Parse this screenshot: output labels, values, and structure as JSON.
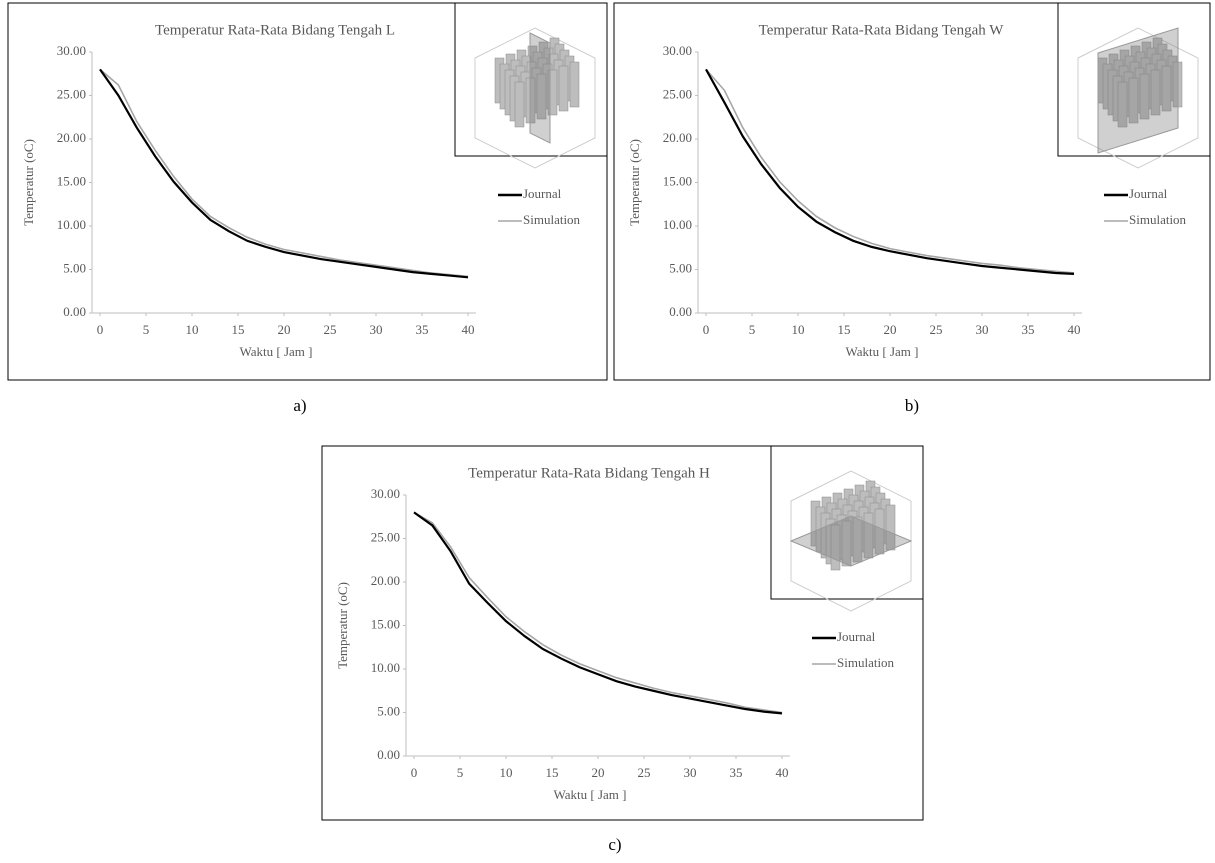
{
  "captions": [
    "a)",
    "b)",
    "c)"
  ],
  "chart_data": [
    {
      "type": "line",
      "title": "Temperatur Rata-Rata Bidang Tengah L",
      "x_label": "Waktu [ Jam ]",
      "y_label": "Temperatur (oC)",
      "x": [
        0,
        2,
        4,
        6,
        8,
        10,
        12,
        14,
        16,
        18,
        20,
        22,
        24,
        26,
        28,
        30,
        32,
        34,
        36,
        38,
        40
      ],
      "series": [
        {
          "name": "Journal",
          "color": "#000000",
          "values": [
            28,
            25,
            21.3,
            18,
            15.1,
            12.7,
            10.7,
            9.4,
            8.3,
            7.6,
            7.0,
            6.6,
            6.2,
            5.9,
            5.6,
            5.3,
            5.0,
            4.7,
            4.5,
            4.3,
            4.1
          ]
        },
        {
          "name": "Simulation",
          "color": "#a6a6a6",
          "values": [
            28,
            26.2,
            22,
            18.7,
            15.7,
            13.1,
            11.1,
            9.8,
            8.7,
            7.9,
            7.3,
            6.9,
            6.5,
            6.1,
            5.8,
            5.5,
            5.2,
            4.9,
            4.6,
            4.4,
            4.2
          ]
        }
      ],
      "xlim": [
        0,
        40
      ],
      "xticks": [
        0,
        5,
        10,
        15,
        20,
        25,
        30,
        35,
        40
      ],
      "ylim": [
        0,
        30
      ],
      "yticks": [
        {
          "value": 0,
          "label": "0.00"
        },
        {
          "value": 5,
          "label": "5.00"
        },
        {
          "value": 10,
          "label": "10.00"
        },
        {
          "value": 15,
          "label": "15.00"
        },
        {
          "value": 20,
          "label": "20.00"
        },
        {
          "value": 25,
          "label": "25.00"
        },
        {
          "value": 30,
          "label": "30.00"
        }
      ],
      "grid": false,
      "legend": "right"
    },
    {
      "type": "line",
      "title": "Temperatur Rata-Rata Bidang Tengah W",
      "x_label": "Waktu [ Jam ]",
      "y_label": "Temperatur (oC)",
      "x": [
        0,
        2,
        4,
        6,
        8,
        10,
        12,
        14,
        16,
        18,
        20,
        22,
        24,
        26,
        28,
        30,
        32,
        34,
        36,
        38,
        40
      ],
      "series": [
        {
          "name": "Journal",
          "color": "#000000",
          "values": [
            28,
            24.2,
            20.3,
            17.1,
            14.4,
            12.2,
            10.5,
            9.3,
            8.3,
            7.6,
            7.1,
            6.7,
            6.3,
            6.0,
            5.7,
            5.4,
            5.2,
            5.0,
            4.8,
            4.6,
            4.5
          ]
        },
        {
          "name": "Simulation",
          "color": "#a6a6a6",
          "values": [
            28,
            25.6,
            21.3,
            17.9,
            15.1,
            12.9,
            11.1,
            9.8,
            8.8,
            8.0,
            7.4,
            7.0,
            6.6,
            6.3,
            6.0,
            5.7,
            5.5,
            5.2,
            5.0,
            4.8,
            4.6
          ]
        }
      ],
      "xlim": [
        0,
        40
      ],
      "xticks": [
        0,
        5,
        10,
        15,
        20,
        25,
        30,
        35,
        40
      ],
      "ylim": [
        0,
        30
      ],
      "yticks": [
        {
          "value": 0,
          "label": "0.00"
        },
        {
          "value": 5,
          "label": "5.00"
        },
        {
          "value": 10,
          "label": "10.00"
        },
        {
          "value": 15,
          "label": "15.00"
        },
        {
          "value": 20,
          "label": "20.00"
        },
        {
          "value": 25,
          "label": "25.00"
        },
        {
          "value": 30,
          "label": "30.00"
        }
      ],
      "grid": false,
      "legend": "right"
    },
    {
      "type": "line",
      "title": "Temperatur Rata-Rata Bidang Tengah H",
      "x_label": "Waktu [ Jam ]",
      "y_label": "Temperatur (oC)",
      "x": [
        0,
        2,
        4,
        6,
        8,
        10,
        12,
        14,
        16,
        18,
        20,
        22,
        24,
        26,
        28,
        30,
        32,
        34,
        36,
        38,
        40
      ],
      "series": [
        {
          "name": "Journal",
          "color": "#000000",
          "values": [
            28,
            26.5,
            23.5,
            19.8,
            17.6,
            15.5,
            13.8,
            12.3,
            11.2,
            10.2,
            9.4,
            8.6,
            8.0,
            7.5,
            7.0,
            6.6,
            6.2,
            5.8,
            5.4,
            5.1,
            4.9
          ]
        },
        {
          "name": "Simulation",
          "color": "#a6a6a6",
          "values": [
            28,
            26.8,
            24,
            20.5,
            18.2,
            16.0,
            14.3,
            12.8,
            11.6,
            10.6,
            9.8,
            9.0,
            8.4,
            7.8,
            7.3,
            6.9,
            6.5,
            6.1,
            5.6,
            5.3,
            5.0
          ]
        }
      ],
      "xlim": [
        0,
        40
      ],
      "xticks": [
        0,
        5,
        10,
        15,
        20,
        25,
        30,
        35,
        40
      ],
      "ylim": [
        0,
        30
      ],
      "yticks": [
        {
          "value": 0,
          "label": "0.00"
        },
        {
          "value": 5,
          "label": "5.00"
        },
        {
          "value": 10,
          "label": "10.00"
        },
        {
          "value": 15,
          "label": "15.00"
        },
        {
          "value": 20,
          "label": "20.00"
        },
        {
          "value": 25,
          "label": "25.00"
        },
        {
          "value": 30,
          "label": "30.00"
        }
      ],
      "grid": false,
      "legend": "right"
    }
  ]
}
